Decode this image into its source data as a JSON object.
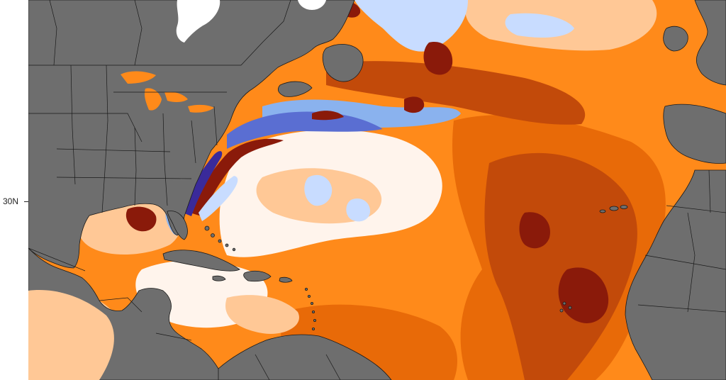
{
  "axis": {
    "lat_label": "30N"
  },
  "colors": {
    "land": "#6e6e6e",
    "borders": "#1a1a1a",
    "ice": "#ffffff",
    "warm_light": "#ffc896",
    "warm_mid": "#ff8a1a",
    "warm_strong": "#e86a08",
    "warm_dark": "#c24a0a",
    "warm_extreme": "#8a1a0a",
    "cool_light": "#c8dcff",
    "cool_mid": "#8ab2ee",
    "cool_strong": "#5a6ed2",
    "cool_extreme": "#3a2a9a",
    "neutral": "#fff4ec"
  }
}
